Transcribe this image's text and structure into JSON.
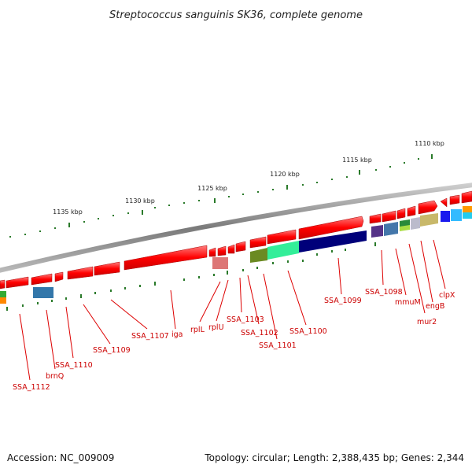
{
  "title": "Streptococcus sanguinis SK36, complete genome",
  "accession": "Accession: NC_009009",
  "topology": "Topology: circular; Length: 2,388,435 bp; Genes: 2,344",
  "scale_labels": [
    "1110 kbp",
    "1115 kbp",
    "1120 kbp",
    "1125 kbp",
    "1130 kbp",
    "1135 kbp"
  ],
  "gene_labels": [
    "clpX",
    "engB",
    "mur2",
    "mmuM",
    "SSA_1098",
    "SSA_1099",
    "SSA_1100",
    "SSA_1101",
    "SSA_1102",
    "SSA_1103",
    "rplU",
    "rplL",
    "iga",
    "SSA_1107",
    "SSA_1109",
    "SSA_1110",
    "brnQ",
    "SSA_1112"
  ],
  "colors": {
    "gene_forward": "#ff0000",
    "backbone": "#888888",
    "label_text": "#cc0000",
    "tick": "#2a7a2a"
  }
}
